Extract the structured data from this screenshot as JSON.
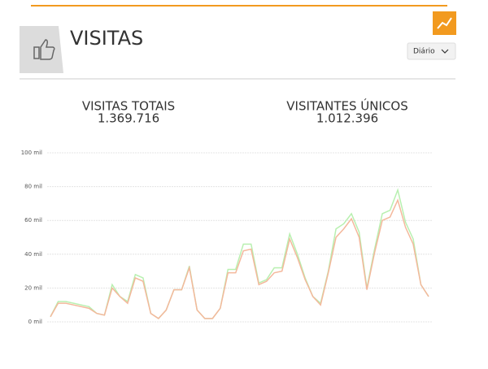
{
  "header": {
    "title": "VISITAS",
    "dropdown": "Diário"
  },
  "stats": [
    {
      "label": "VISITAS TOTAIS",
      "value": "1.369.716"
    },
    {
      "label": "VISITANTES ÚNICOS",
      "value": "1.012.396"
    }
  ],
  "chart_data": {
    "type": "line",
    "series": [
      {
        "color": "#b8f0b0",
        "values": [
          3,
          12,
          12,
          11,
          10,
          9,
          5,
          4,
          22,
          15,
          12,
          28,
          26,
          5,
          2,
          7,
          19,
          19,
          33,
          7,
          2,
          2,
          8,
          31,
          31,
          46,
          46,
          23,
          25,
          32,
          32,
          52,
          40,
          26,
          15,
          11,
          30,
          55,
          58,
          64,
          53,
          20,
          43,
          64,
          66,
          78,
          59,
          49,
          22,
          15
        ]
      },
      {
        "color": "#f4b89c",
        "values": [
          3,
          11,
          11,
          10,
          9,
          8,
          5,
          4,
          20,
          15,
          11,
          26,
          24,
          5,
          2,
          7,
          19,
          19,
          32,
          7,
          2,
          2,
          8,
          29,
          29,
          42,
          43,
          22,
          24,
          29,
          30,
          49,
          38,
          25,
          15,
          10,
          29,
          50,
          55,
          61,
          50,
          19,
          41,
          60,
          62,
          72,
          56,
          46,
          22,
          15
        ]
      }
    ],
    "ylim": [
      0,
      100
    ],
    "yticks": [
      {
        "value": 0,
        "label": "0 mil"
      },
      {
        "value": 20,
        "label": "20 mil"
      },
      {
        "value": 40,
        "label": "40 mil"
      },
      {
        "value": 60,
        "label": "60 mil"
      },
      {
        "value": 80,
        "label": "80 mil"
      },
      {
        "value": 100,
        "label": "100 mil"
      }
    ],
    "grid": true
  }
}
